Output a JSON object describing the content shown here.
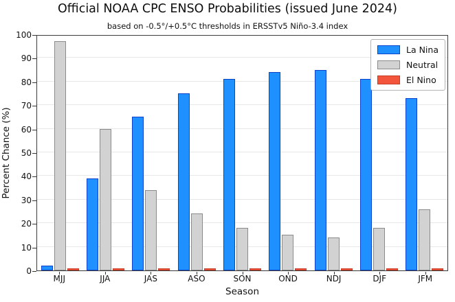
{
  "title": "Official NOAA CPC ENSO Probabilities (issued June 2024)",
  "subtitle": "based on -0.5°/+0.5°C thresholds in ERSSTv5 Niño-3.4 index",
  "chart_data": {
    "type": "bar",
    "categories": [
      "MJJ",
      "JJA",
      "JAS",
      "ASO",
      "SON",
      "OND",
      "NDJ",
      "DJF",
      "JFM"
    ],
    "series": [
      {
        "name": "La Nina",
        "color": "#1E90FF",
        "edge_color": "#0C41CC",
        "values": [
          2,
          39,
          65,
          75,
          81,
          84,
          85,
          81,
          73
        ]
      },
      {
        "name": "Neutral",
        "color": "#D2D2D2",
        "edge_color": "#8A8A8A",
        "values": [
          97,
          60,
          34,
          24,
          18,
          15,
          14,
          18,
          26
        ]
      },
      {
        "name": "El Nino",
        "color": "#F2553B",
        "edge_color": "#C53A22",
        "values": [
          1,
          1,
          1,
          1,
          1,
          1,
          1,
          1,
          1
        ]
      }
    ],
    "xlabel": "Season",
    "ylabel": "Percent Chance (%)",
    "ylim": [
      0,
      100
    ],
    "yticks": [
      0,
      10,
      20,
      30,
      40,
      50,
      60,
      70,
      80,
      90,
      100
    ],
    "grid": "horizontal",
    "legend_position": "upper right",
    "colors": {
      "grid": "#e7e7e7",
      "frame": "#3a3a3a",
      "background": "#ffffff"
    }
  }
}
